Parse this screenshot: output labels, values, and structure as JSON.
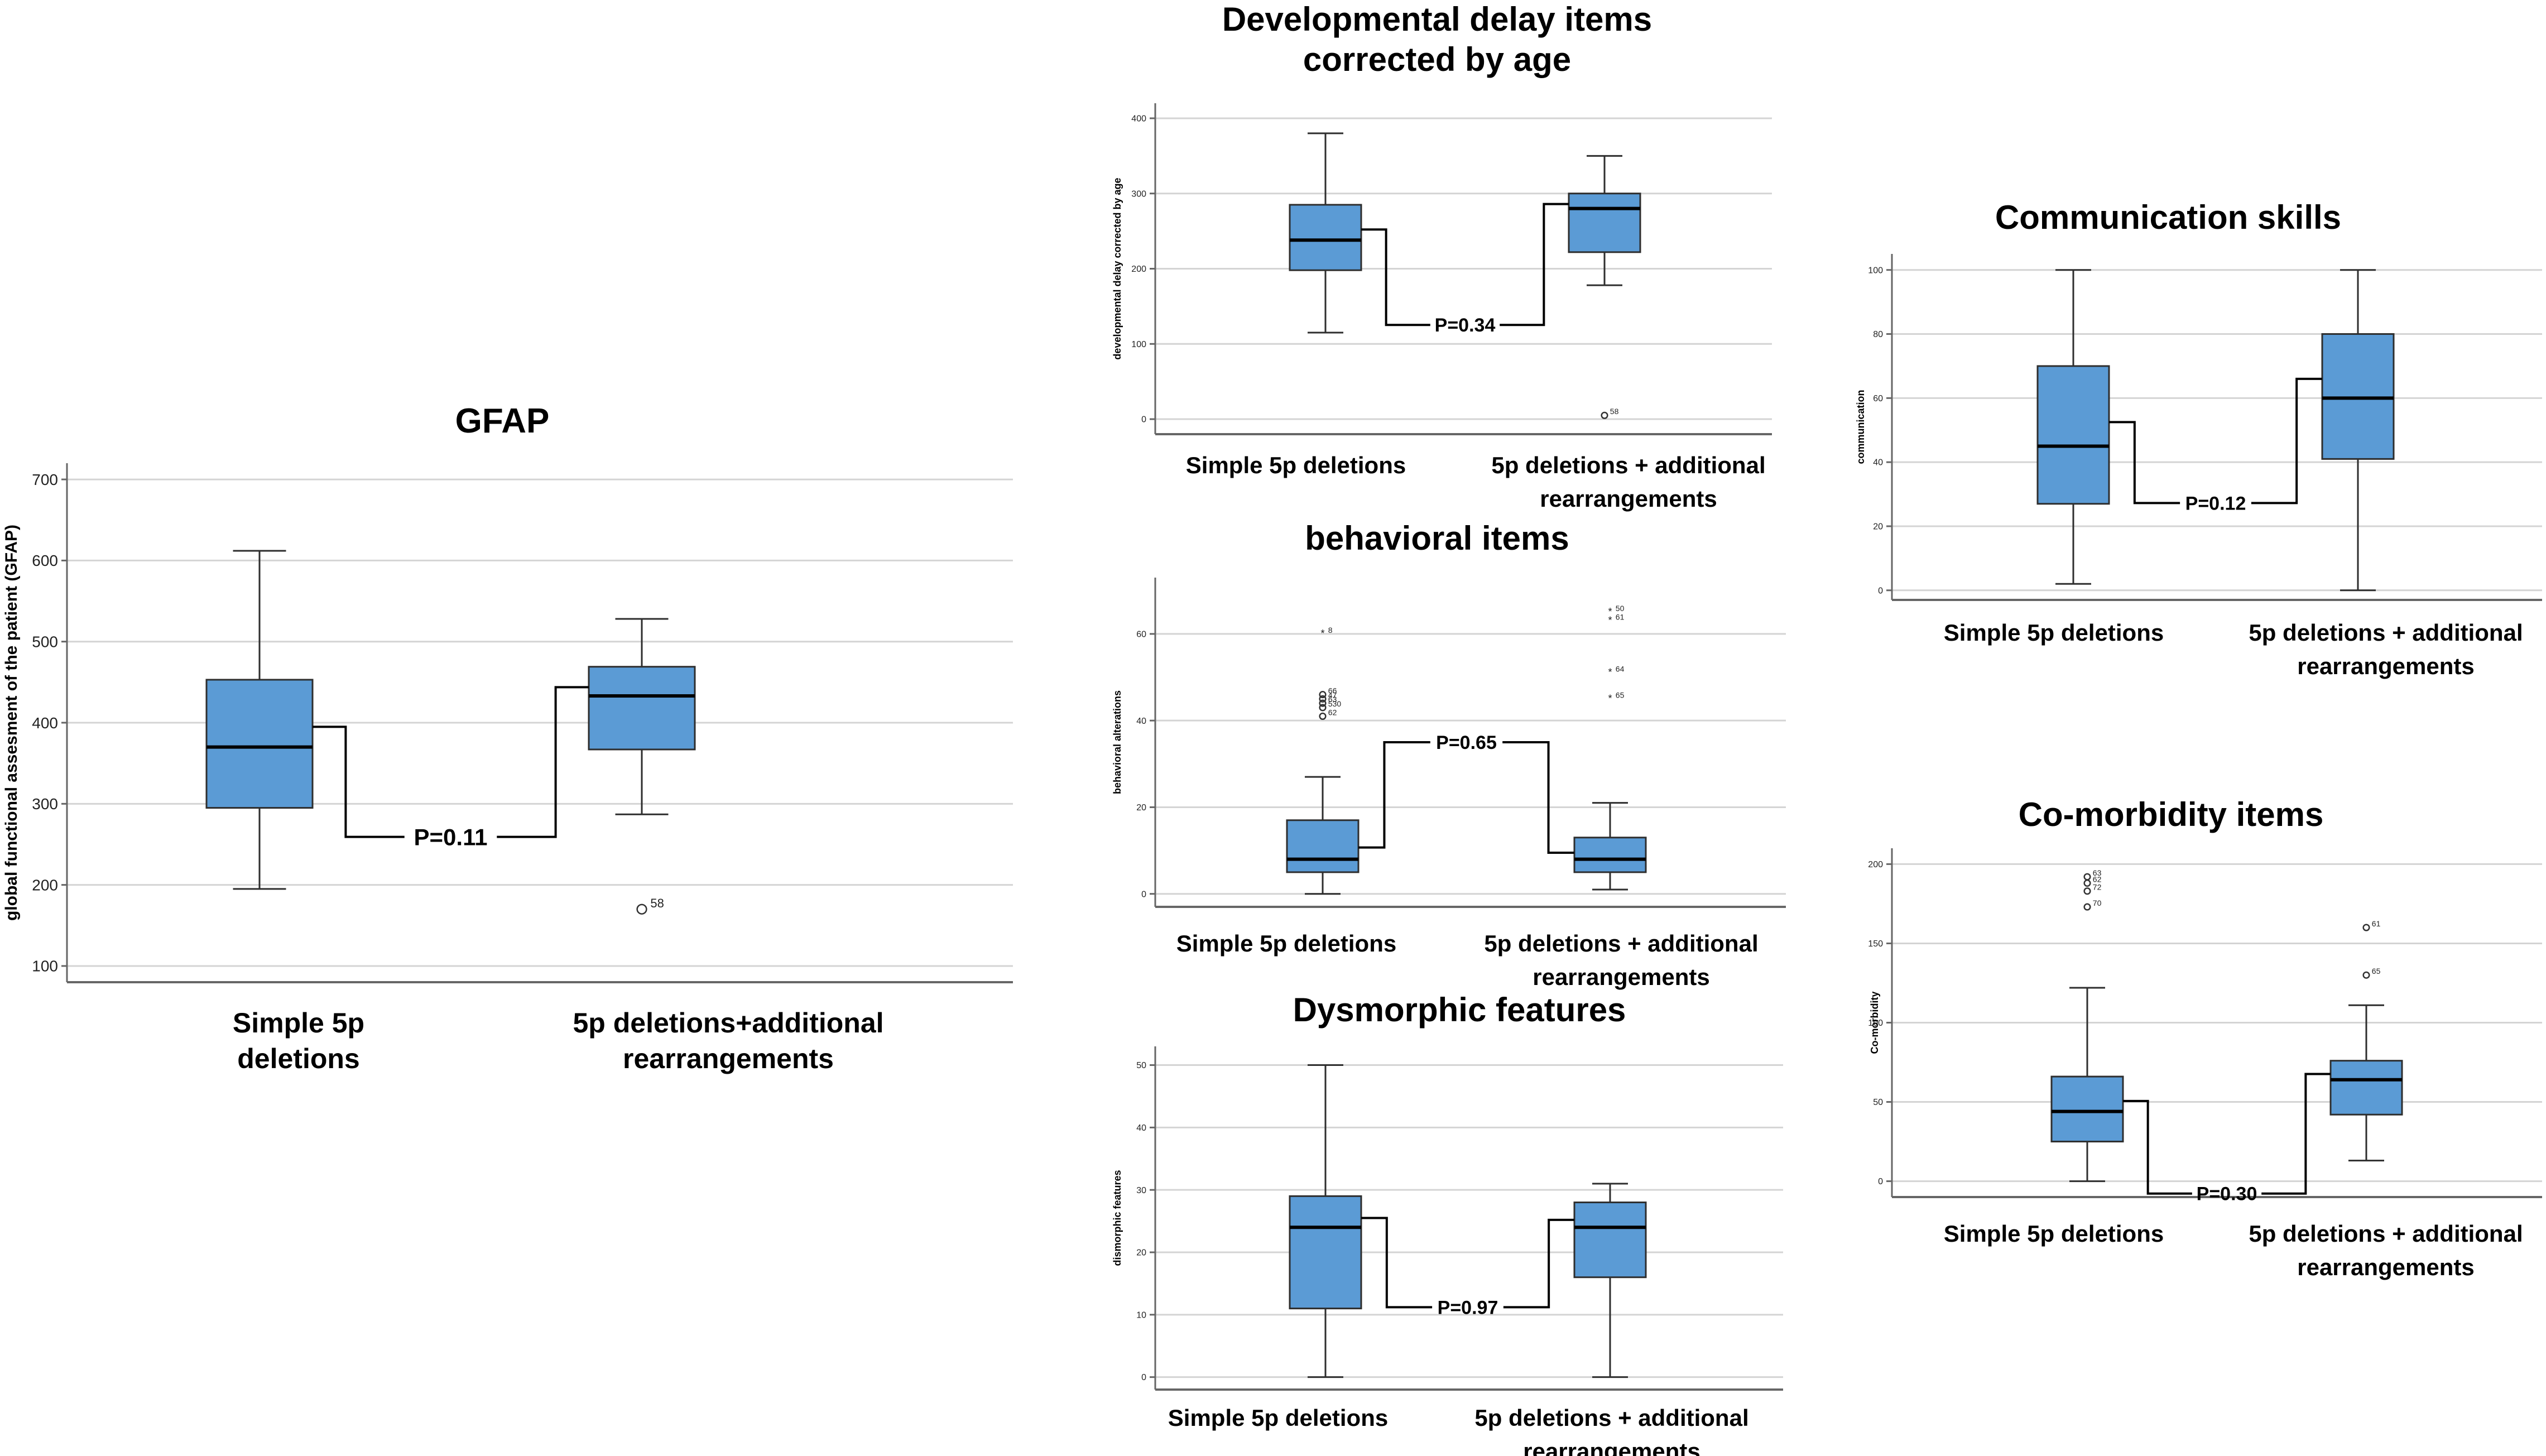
{
  "chart_data": [
    {
      "id": "gfap",
      "type": "boxplot",
      "title_lines": [
        "GFAP"
      ],
      "ylabel": "global functional assesment of the patient (GFAP)",
      "ylim": [
        80,
        720
      ],
      "yticks": [
        100,
        200,
        300,
        400,
        500,
        600,
        700
      ],
      "ytick_labels": [
        "100",
        "200",
        "300",
        "400",
        "500",
        "600",
        "700"
      ],
      "categories": [
        [
          "Simple 5p",
          "deletions"
        ],
        [
          "5p deletions+additional",
          "rearrangements"
        ]
      ],
      "series": [
        {
          "name": "Simple 5p deletions",
          "min": 195,
          "q1": 295,
          "median": 370,
          "q3": 453,
          "max": 612,
          "outliers": []
        },
        {
          "name": "5p deletions+additional rearrangements",
          "min": 287,
          "q1": 367,
          "median": 433,
          "q3": 469,
          "max": 528,
          "outliers": [
            {
              "value": 170,
              "label": "58",
              "marker": "circle"
            }
          ]
        }
      ],
      "p_value": "P=0.11"
    },
    {
      "id": "developmental-delay",
      "type": "boxplot",
      "title_lines": [
        "Developmental delay items",
        "corrected by age"
      ],
      "ylabel": "developmental delay corrected by age",
      "ylim": [
        -20,
        420
      ],
      "yticks": [
        0,
        100,
        200,
        300,
        400
      ],
      "ytick_labels": [
        "0",
        "100",
        "200",
        "300",
        "400"
      ],
      "categories": [
        [
          "Simple 5p deletions"
        ],
        [
          "5p deletions + additional",
          "rearrangements"
        ]
      ],
      "series": [
        {
          "name": "Simple 5p deletions",
          "min": 115,
          "q1": 198,
          "median": 238,
          "q3": 285,
          "max": 380,
          "outliers": []
        },
        {
          "name": "5p deletions + additional rearrangements",
          "min": 178,
          "q1": 222,
          "median": 280,
          "q3": 300,
          "max": 350,
          "outliers": [
            {
              "value": 5,
              "label": "58",
              "marker": "circle"
            }
          ]
        }
      ],
      "p_value": "P=0.34"
    },
    {
      "id": "behavioral",
      "type": "boxplot",
      "title_lines": [
        "behavioral items"
      ],
      "ylabel": "behavioral alterations",
      "ylim": [
        -3,
        73
      ],
      "yticks": [
        0,
        20,
        40,
        60
      ],
      "ytick_labels": [
        "0",
        "20",
        "40",
        "60"
      ],
      "categories": [
        [
          "Simple 5p deletions"
        ],
        [
          "5p deletions + additional",
          "rearrangements"
        ]
      ],
      "series": [
        {
          "name": "Simple 5p deletions",
          "min": 0,
          "q1": 5,
          "median": 8,
          "q3": 17,
          "max": 27,
          "outliers": [
            {
              "value": 60,
              "label": "8",
              "marker": "star"
            },
            {
              "value": 46,
              "label": "66",
              "marker": "circle"
            },
            {
              "value": 45,
              "label": "47",
              "marker": "circle"
            },
            {
              "value": 44,
              "label": "63",
              "marker": "circle"
            },
            {
              "value": 43,
              "label": "530",
              "marker": "circle"
            },
            {
              "value": 41,
              "label": "62",
              "marker": "circle"
            }
          ]
        },
        {
          "name": "5p deletions + additional rearrangements",
          "min": 1,
          "q1": 5,
          "median": 8,
          "q3": 13,
          "max": 21,
          "outliers": [
            {
              "value": 65,
              "label": "50",
              "marker": "star"
            },
            {
              "value": 63,
              "label": "61",
              "marker": "star"
            },
            {
              "value": 51,
              "label": "64",
              "marker": "star"
            },
            {
              "value": 45,
              "label": "65",
              "marker": "star"
            }
          ]
        }
      ],
      "p_value": "P=0.65"
    },
    {
      "id": "dysmorphic",
      "type": "boxplot",
      "title_lines": [
        "Dysmorphic features"
      ],
      "ylabel": "dismorphic features",
      "ylim": [
        -2,
        53
      ],
      "yticks": [
        0,
        10,
        20,
        30,
        40,
        50
      ],
      "ytick_labels": [
        "0",
        "10",
        "20",
        "30",
        "40",
        "50"
      ],
      "categories": [
        [
          "Simple 5p deletions"
        ],
        [
          "5p deletions + additional",
          "rearrangements"
        ]
      ],
      "series": [
        {
          "name": "Simple 5p deletions",
          "min": 0,
          "q1": 11,
          "median": 24,
          "q3": 29,
          "max": 50,
          "outliers": []
        },
        {
          "name": "5p deletions + additional rearrangements",
          "min": 0,
          "q1": 16,
          "median": 24,
          "q3": 28,
          "max": 31,
          "outliers": []
        }
      ],
      "p_value": "P=0.97"
    },
    {
      "id": "communication",
      "type": "boxplot",
      "title_lines": [
        "Communication skills"
      ],
      "ylabel": "communication",
      "ylim": [
        -3,
        105
      ],
      "yticks": [
        0,
        20,
        40,
        60,
        80,
        100
      ],
      "ytick_labels": [
        "0",
        "20",
        "40",
        "60",
        "80",
        "100"
      ],
      "categories": [
        [
          "Simple 5p deletions"
        ],
        [
          "5p deletions + additional",
          "rearrangements"
        ]
      ],
      "series": [
        {
          "name": "Simple 5p deletions",
          "min": 2,
          "q1": 27,
          "median": 45,
          "q3": 70,
          "max": 100,
          "outliers": []
        },
        {
          "name": "5p deletions + additional rearrangements",
          "min": 0,
          "q1": 41,
          "median": 60,
          "q3": 80,
          "max": 100,
          "outliers": []
        }
      ],
      "p_value": "P=0.12"
    },
    {
      "id": "comorbidity",
      "type": "boxplot",
      "title_lines": [
        "Co-morbidity items"
      ],
      "ylabel": "Co-morbidity",
      "ylim": [
        -10,
        210
      ],
      "yticks": [
        0,
        50,
        100,
        150,
        200
      ],
      "ytick_labels": [
        "0",
        "50",
        "100",
        "150",
        "200"
      ],
      "categories": [
        [
          "Simple 5p deletions"
        ],
        [
          "5p deletions + additional",
          "rearrangements"
        ]
      ],
      "series": [
        {
          "name": "Simple 5p deletions",
          "min": 0,
          "q1": 25,
          "median": 44,
          "q3": 66,
          "max": 122,
          "outliers": [
            {
              "value": 192,
              "label": "63",
              "marker": "circle"
            },
            {
              "value": 188,
              "label": "62",
              "marker": "circle"
            },
            {
              "value": 183,
              "label": "72",
              "marker": "circle"
            },
            {
              "value": 173,
              "label": "70",
              "marker": "circle"
            }
          ]
        },
        {
          "name": "5p deletions + additional rearrangements",
          "min": 13,
          "q1": 42,
          "median": 64,
          "q3": 76,
          "max": 111,
          "outliers": [
            {
              "value": 160,
              "label": "61",
              "marker": "circle"
            },
            {
              "value": 130,
              "label": "65",
              "marker": "circle"
            }
          ]
        }
      ],
      "p_value": "P=0.30"
    }
  ],
  "colors": {
    "box_fill": "#5b9bd5",
    "box_stroke": "#2e2e2e",
    "grid": "#d4d4d4",
    "axis": "#666666",
    "text": "#000000"
  }
}
